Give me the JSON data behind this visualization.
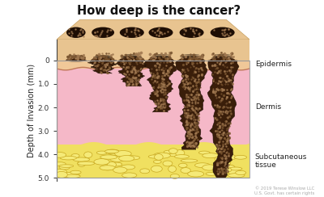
{
  "title": "How deep is the cancer?",
  "title_fontsize": 10.5,
  "title_fontweight": "bold",
  "ylabel": "Depth of Invasion (mm)",
  "ylabel_fontsize": 7,
  "yticks": [
    0,
    1.0,
    2.0,
    3.0,
    4.0,
    5.0
  ],
  "background_color": "#ffffff",
  "skin_top_color": "#e8c490",
  "epidermis_color": "#f0c898",
  "dermis_color": "#f5b8c8",
  "dermis_bottom_color": "#f0a8be",
  "subcutaneous_color": "#f0e060",
  "fat_cell_color": "#f5ea78",
  "fat_cell_border": "#c8a820",
  "epidermis_label": "Epidermis",
  "dermis_label": "Dermis",
  "subcutaneous_label": "Subcutaneous\ntissue",
  "copyright_text": "© 2019 Terese Winslow LLC\nU.S. Govt. has certain rights",
  "tumor_dark": "#1e0e04",
  "tumor_mid": "#3a1e0a",
  "tumor_light": "#7a5530",
  "tumor_grain": "#a07850",
  "epidermis_depth": 0.35,
  "dermis_depth": 3.6,
  "sub_depth": 5.0,
  "y_min": -0.9,
  "y_max": 5.15,
  "tumor_x_centers": [
    0.1,
    0.24,
    0.39,
    0.54,
    0.7,
    0.86
  ],
  "tumor_depths": [
    0.05,
    0.55,
    1.1,
    2.2,
    3.8,
    5.0
  ],
  "tumor_surface_widths": [
    0.11,
    0.13,
    0.14,
    0.14,
    0.14,
    0.14
  ],
  "mole_heights": [
    0.3,
    0.32,
    0.35,
    0.35,
    0.35,
    0.35
  ]
}
